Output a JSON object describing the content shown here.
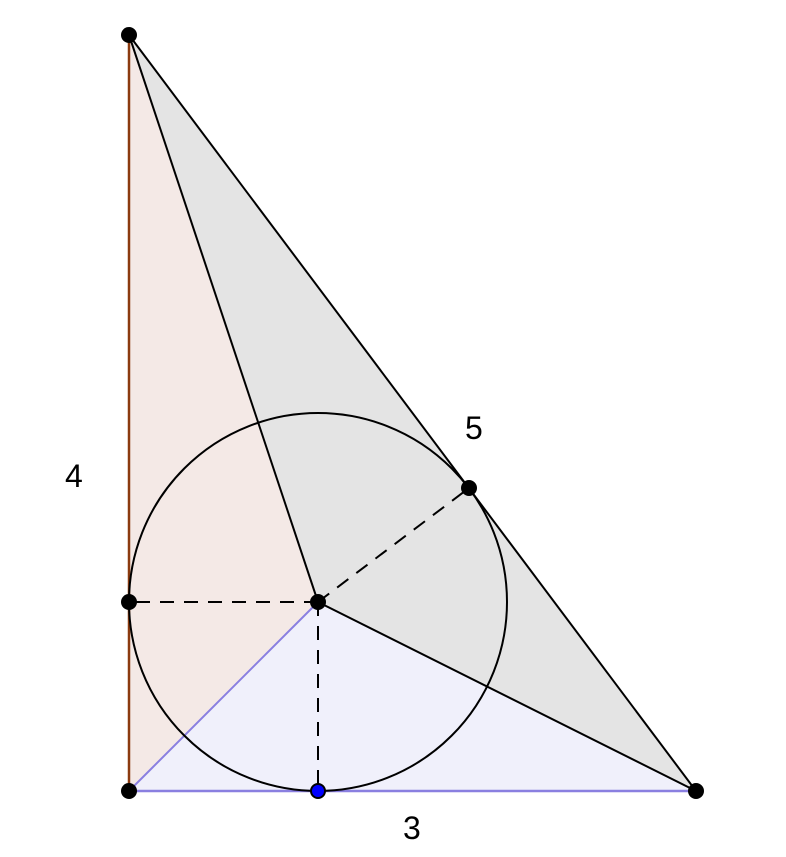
{
  "labels": {
    "left_side": "4",
    "hypotenuse": "5",
    "bottom_side": "3"
  },
  "colors": {
    "left_fill": "#f4e9e6",
    "left_edge": "#8b3a0f",
    "bottom_fill": "#f0f0fb",
    "bottom_edge": "#8a7fe0",
    "gray_fill": "#e4e4e4",
    "line": "#000000",
    "point": "#000000",
    "highlight_point": "#0000ff"
  }
}
